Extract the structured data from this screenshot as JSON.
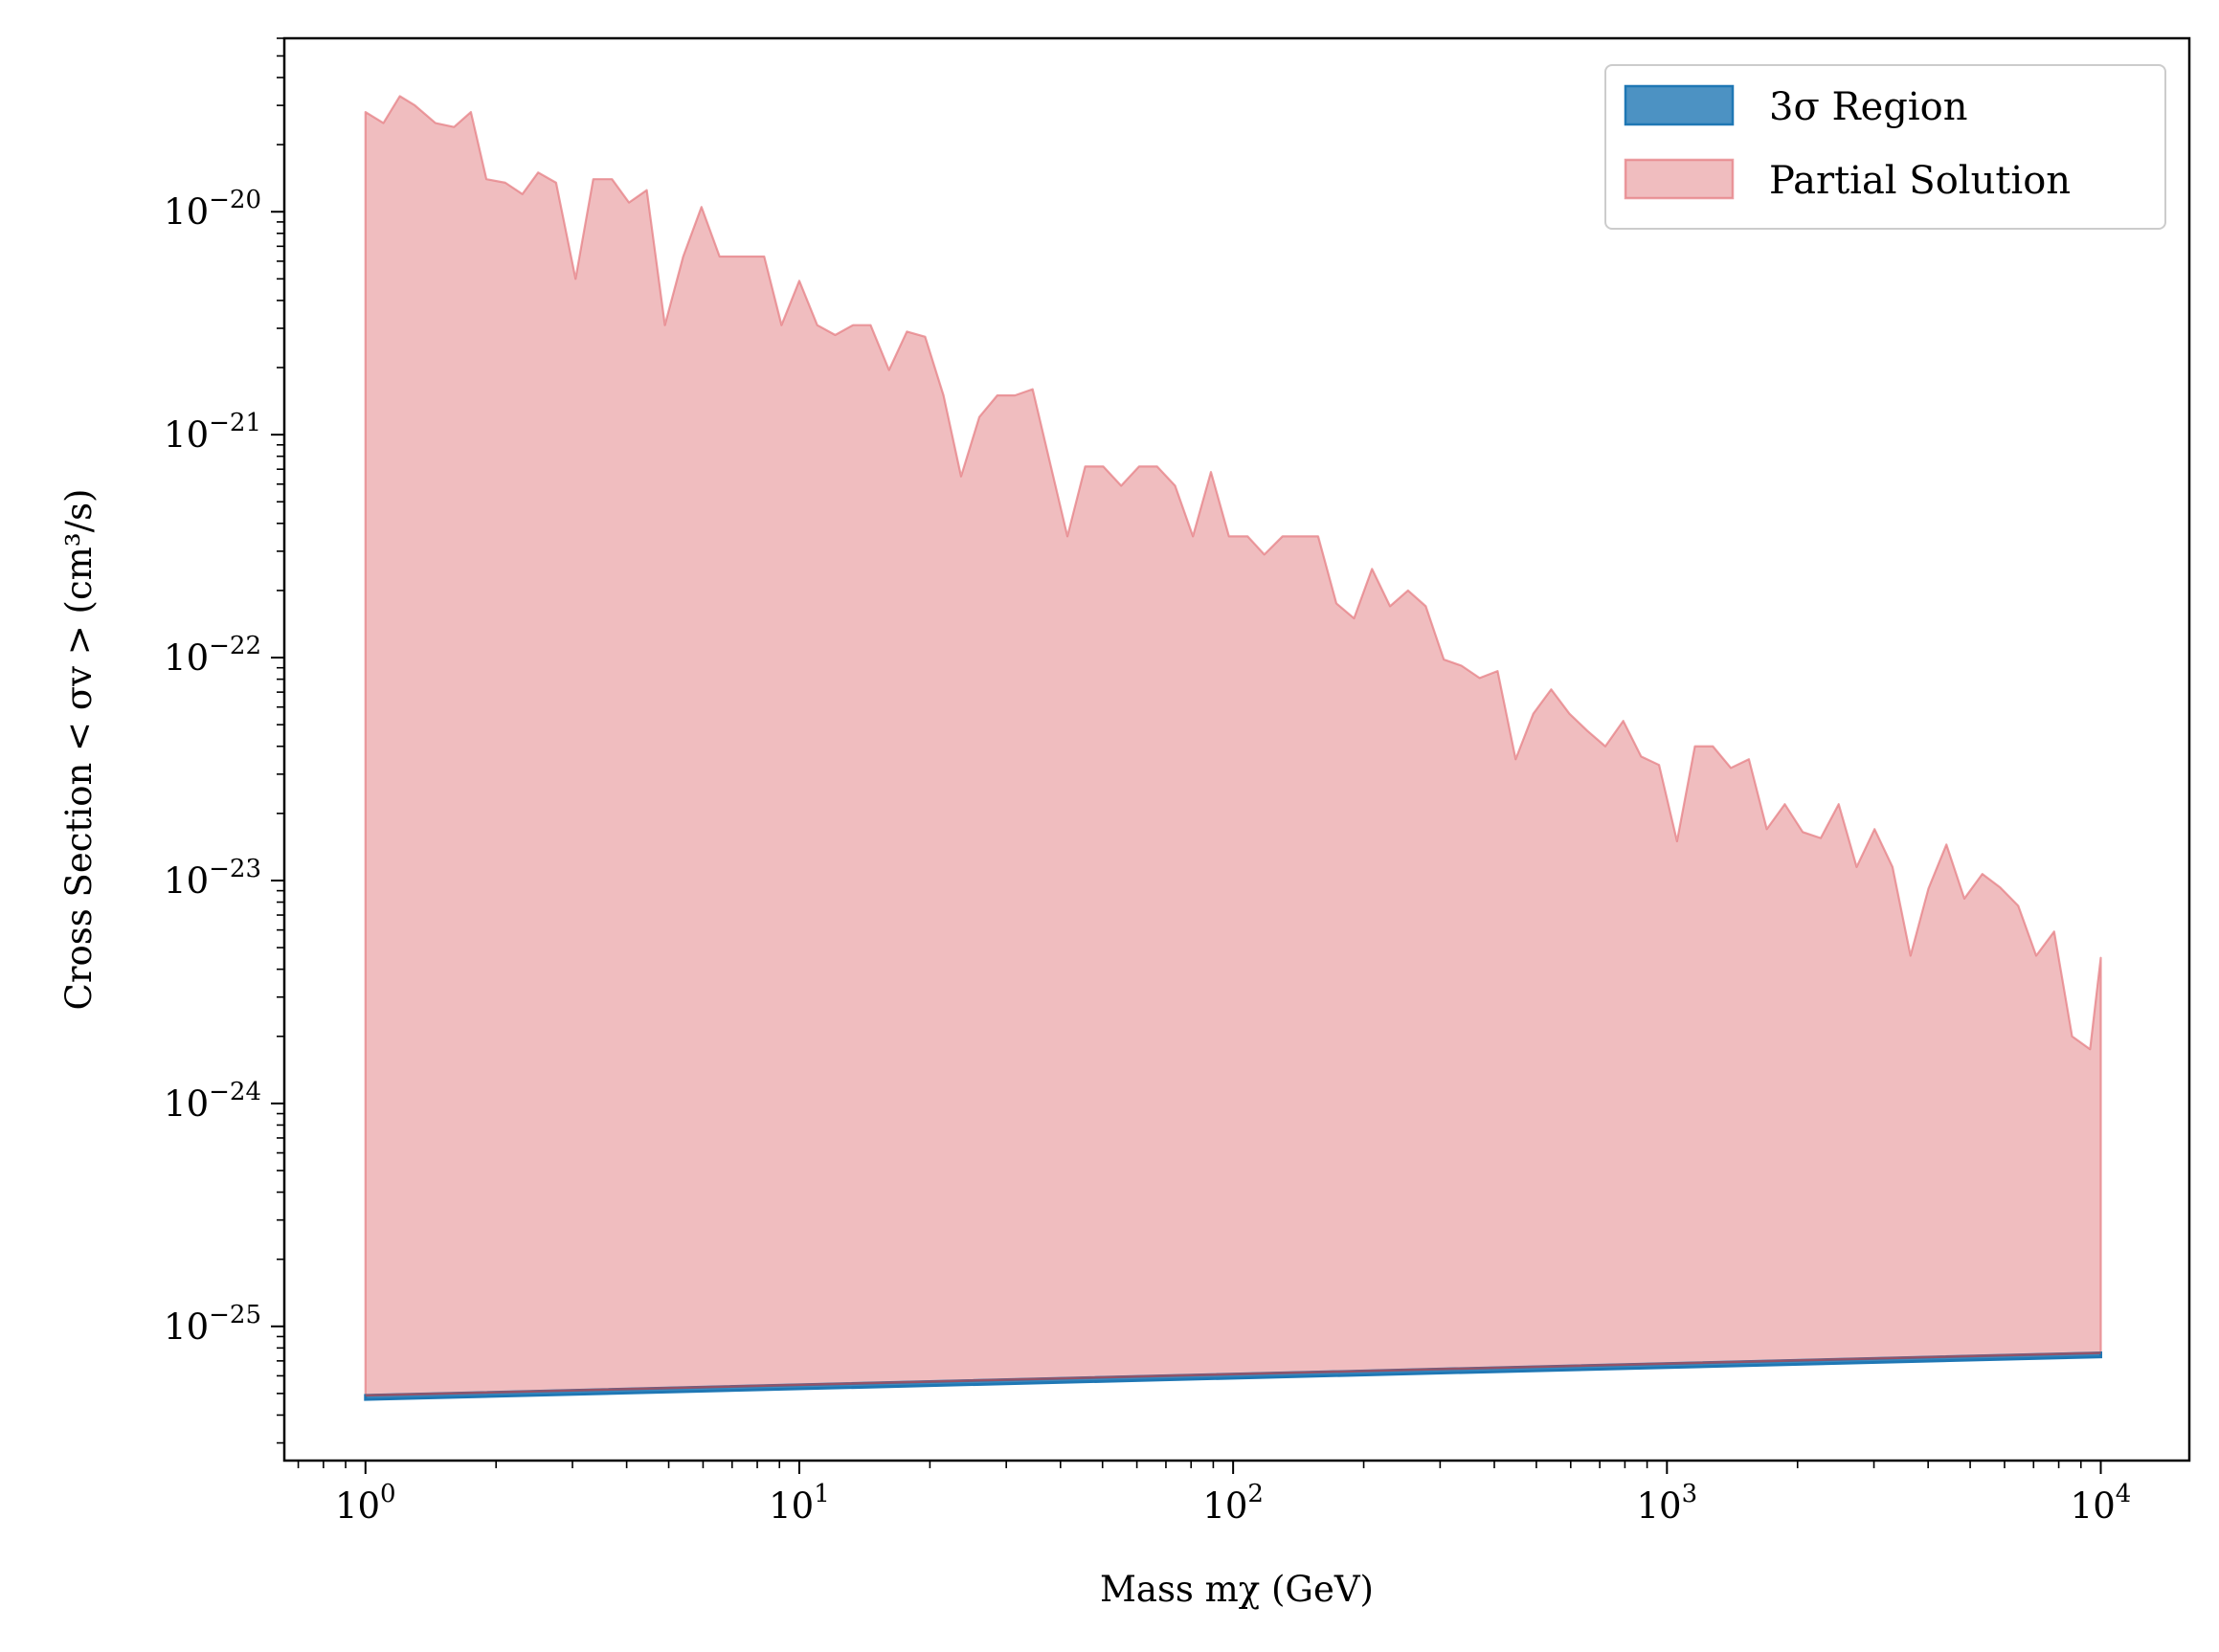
{
  "chart_data": {
    "type": "area",
    "title": "",
    "xlabel": "Mass mχ (GeV)",
    "ylabel": "Cross Section < σv > (cm³/s)",
    "xscale": "log",
    "yscale": "log",
    "xlim": [
      0.65,
      16000
    ],
    "ylim": [
      2.5e-26,
      6e-20
    ],
    "x_ticks": [
      {
        "base": "10",
        "exp": "0",
        "value": 1
      },
      {
        "base": "10",
        "exp": "1",
        "value": 10
      },
      {
        "base": "10",
        "exp": "2",
        "value": 100
      },
      {
        "base": "10",
        "exp": "3",
        "value": 1000
      },
      {
        "base": "10",
        "exp": "4",
        "value": 10000
      }
    ],
    "y_ticks": [
      {
        "base": "10",
        "exp": "−25",
        "value": 1e-25
      },
      {
        "base": "10",
        "exp": "−24",
        "value": 1e-24
      },
      {
        "base": "10",
        "exp": "−23",
        "value": 1e-23
      },
      {
        "base": "10",
        "exp": "−22",
        "value": 1e-22
      },
      {
        "base": "10",
        "exp": "−21",
        "value": 1e-21
      },
      {
        "base": "10",
        "exp": "−20",
        "value": 1e-20
      }
    ],
    "legend_position": "top-right",
    "series": [
      {
        "name": "3σ Region",
        "color": "#1f77b4",
        "lower": [
          [
            1,
            4.7e-26
          ],
          [
            10000,
            7.3e-26
          ]
        ],
        "upper": [
          [
            1,
            4.9e-26
          ],
          [
            10000,
            7.6e-26
          ]
        ]
      },
      {
        "name": "Partial Solution",
        "color": "#e57f84",
        "lower": [
          [
            1,
            4.9e-26
          ],
          [
            10000,
            7.6e-26
          ]
        ],
        "upper": [
          [
            1.0,
            2.8e-20
          ],
          [
            1.1,
            2.5e-20
          ],
          [
            1.2,
            3.3e-20
          ],
          [
            1.3,
            3e-20
          ],
          [
            1.45,
            2.5e-20
          ],
          [
            1.6,
            2.4e-20
          ],
          [
            1.75,
            2.8e-20
          ],
          [
            1.9,
            1.4e-20
          ],
          [
            2.1,
            1.35e-20
          ],
          [
            2.3,
            1.2e-20
          ],
          [
            2.5,
            1.5e-20
          ],
          [
            2.75,
            1.35e-20
          ],
          [
            3.05,
            5e-21
          ],
          [
            3.35,
            1.4e-20
          ],
          [
            3.7,
            1.4e-20
          ],
          [
            4.05,
            1.1e-20
          ],
          [
            4.45,
            1.25e-20
          ],
          [
            4.9,
            3.1e-21
          ],
          [
            5.4,
            6.3e-21
          ],
          [
            5.95,
            1.05e-20
          ],
          [
            6.55,
            6.3e-21
          ],
          [
            7.2,
            6.3e-21
          ],
          [
            8.3,
            6.3e-21
          ],
          [
            9.1,
            3.1e-21
          ],
          [
            10.0,
            4.9e-21
          ],
          [
            11.0,
            3.1e-21
          ],
          [
            12.1,
            2.8e-21
          ],
          [
            13.3,
            3.1e-21
          ],
          [
            14.6,
            3.1e-21
          ],
          [
            16.1,
            1.95e-21
          ],
          [
            17.7,
            2.9e-21
          ],
          [
            19.5,
            2.75e-21
          ],
          [
            21.5,
            1.5e-21
          ],
          [
            23.6,
            6.5e-22
          ],
          [
            26.0,
            1.2e-21
          ],
          [
            28.6,
            1.5e-21
          ],
          [
            31.4,
            1.5e-21
          ],
          [
            34.5,
            1.6e-21
          ],
          [
            41.5,
            3.5e-22
          ],
          [
            45.6,
            7.2e-22
          ],
          [
            50.2,
            7.2e-22
          ],
          [
            55.2,
            5.9e-22
          ],
          [
            60.7,
            7.2e-22
          ],
          [
            66.8,
            7.2e-22
          ],
          [
            73.5,
            5.9e-22
          ],
          [
            80.8,
            3.5e-22
          ],
          [
            88.9,
            6.8e-22
          ],
          [
            97.8,
            3.5e-22
          ],
          [
            108,
            3.5e-22
          ],
          [
            118,
            2.9e-22
          ],
          [
            130,
            3.5e-22
          ],
          [
            157,
            3.5e-22
          ],
          [
            173,
            1.75e-22
          ],
          [
            190,
            1.5e-22
          ],
          [
            209,
            2.5e-22
          ],
          [
            230,
            1.7e-22
          ],
          [
            253,
            2e-22
          ],
          [
            278,
            1.7e-22
          ],
          [
            306,
            9.8e-23
          ],
          [
            336,
            9.2e-23
          ],
          [
            370,
            8.1e-23
          ],
          [
            407,
            8.7e-23
          ],
          [
            448,
            3.5e-23
          ],
          [
            492,
            5.6e-23
          ],
          [
            541,
            7.2e-23
          ],
          [
            596,
            5.6e-23
          ],
          [
            655,
            4.7e-23
          ],
          [
            721,
            4e-23
          ],
          [
            793,
            5.2e-23
          ],
          [
            872,
            3.6e-23
          ],
          [
            959,
            3.3e-23
          ],
          [
            1055,
            1.5e-23
          ],
          [
            1160,
            4e-23
          ],
          [
            1276,
            4e-23
          ],
          [
            1404,
            3.2e-23
          ],
          [
            1545,
            3.5e-23
          ],
          [
            1699,
            1.7e-23
          ],
          [
            1869,
            2.2e-23
          ],
          [
            2056,
            1.65e-23
          ],
          [
            2262,
            1.55e-23
          ],
          [
            2488,
            2.2e-23
          ],
          [
            2737,
            1.15e-23
          ],
          [
            3010,
            1.7e-23
          ],
          [
            3311,
            1.15e-23
          ],
          [
            3643,
            4.6e-24
          ],
          [
            4007,
            9.2e-24
          ],
          [
            4407,
            1.45e-23
          ],
          [
            4848,
            8.3e-24
          ],
          [
            5333,
            1.07e-23
          ],
          [
            5866,
            9.3e-24
          ],
          [
            6453,
            7.7e-24
          ],
          [
            7098,
            4.6e-24
          ],
          [
            7808,
            5.9e-24
          ],
          [
            8589,
            2e-24
          ],
          [
            9448,
            1.75e-24
          ],
          [
            10000,
            4.5e-24
          ],
          [
            10000,
            4e-24
          ]
        ]
      }
    ]
  }
}
